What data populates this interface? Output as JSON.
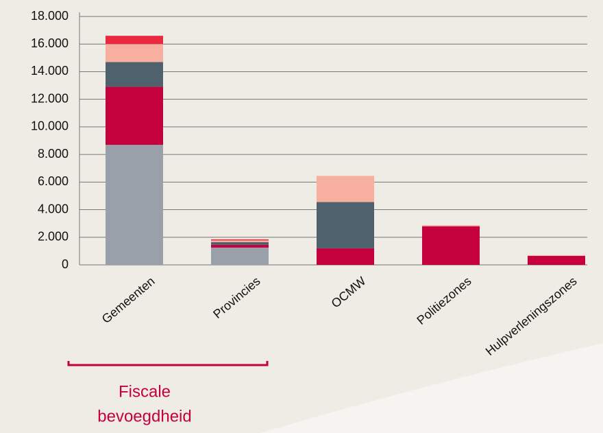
{
  "chart_data": {
    "type": "bar",
    "stacked": true,
    "categories": [
      "Gemeenten",
      "Provincies",
      "OCMW",
      "Politiezones",
      "Hulpverleningszones"
    ],
    "series": [
      {
        "color": "#9aa0aa",
        "values": [
          8700,
          1250,
          0,
          0,
          0
        ]
      },
      {
        "color": "#c4003d",
        "values": [
          4200,
          200,
          1200,
          2800,
          650
        ]
      },
      {
        "color": "#50616e",
        "values": [
          1800,
          200,
          3350,
          0,
          0
        ]
      },
      {
        "color": "#f7b0a0",
        "values": [
          1300,
          120,
          1900,
          80,
          50
        ]
      },
      {
        "color": "#e8293f",
        "values": [
          600,
          80,
          0,
          0,
          0
        ]
      }
    ],
    "ylim": [
      0,
      18000
    ],
    "yticks": [
      0,
      {
        "value": 2000,
        "label": "2.000"
      },
      {
        "value": 4000,
        "label": "4.000"
      },
      {
        "value": 6000,
        "label": "6.000"
      },
      {
        "value": 8000,
        "label": "8.000"
      },
      {
        "value": 10000,
        "label": "10.000"
      },
      {
        "value": 12000,
        "label": "12.000"
      },
      {
        "value": 14000,
        "label": "14.000"
      },
      {
        "value": 16000,
        "label": "16.000"
      },
      {
        "value": 18000,
        "label": "18.000"
      }
    ],
    "grid": true,
    "annotation_lines": [
      "Fiscale",
      "bevoegdheid"
    ],
    "annotation_color": "#c4003d"
  }
}
